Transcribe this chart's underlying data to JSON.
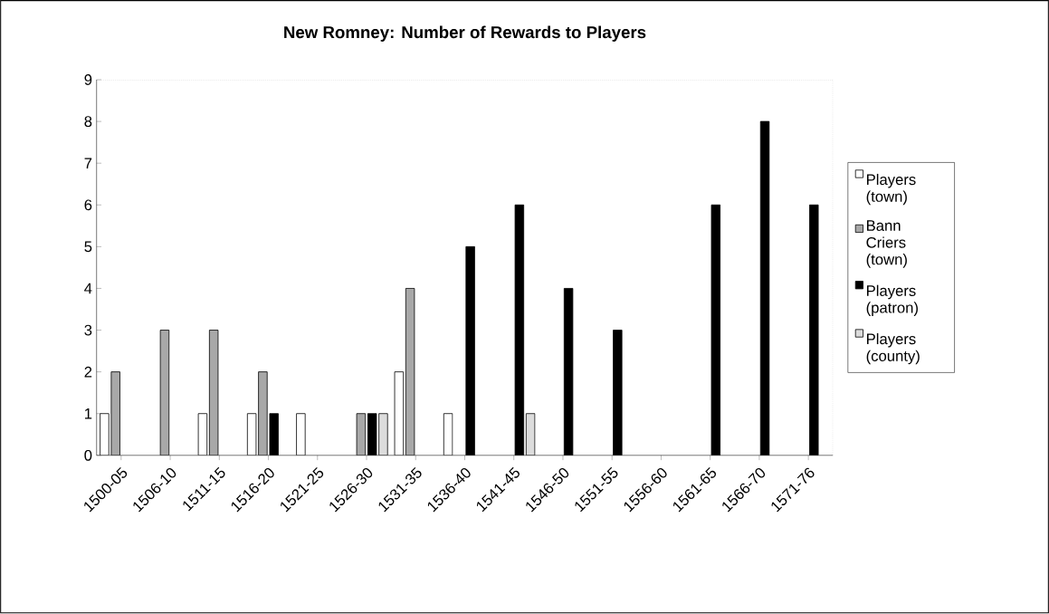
{
  "chart_data": {
    "type": "bar",
    "title": "New Romney: Number of Rewards to Players",
    "categories": [
      "1500-05",
      "1506-10",
      "1511-15",
      "1516-20",
      "1521-25",
      "1526-30",
      "1531-35",
      "1536-40",
      "1541-45",
      "1546-50",
      "1551-55",
      "1556-60",
      "1561-65",
      "1566-70",
      "1571-76"
    ],
    "series": [
      {
        "name": "Players (town)",
        "color": "#ffffff",
        "values": [
          1,
          null,
          1,
          1,
          1,
          null,
          2,
          1,
          null,
          null,
          null,
          null,
          null,
          null,
          null
        ]
      },
      {
        "name": "Bann Criers (town)",
        "color": "#a8a8a8",
        "values": [
          2,
          3,
          3,
          2,
          null,
          1,
          4,
          null,
          null,
          null,
          null,
          null,
          null,
          null,
          null
        ]
      },
      {
        "name": "Players (patron)",
        "color": "#000000",
        "values": [
          null,
          null,
          null,
          1,
          null,
          1,
          null,
          5,
          6,
          4,
          3,
          null,
          6,
          8,
          6
        ]
      },
      {
        "name": "Players (county)",
        "color": "#dcdcdc",
        "values": [
          null,
          null,
          null,
          null,
          null,
          1,
          null,
          null,
          1,
          null,
          null,
          null,
          null,
          null,
          null
        ]
      }
    ],
    "ylim": [
      0,
      9
    ],
    "yticks": [
      0,
      1,
      2,
      3,
      4,
      5,
      6,
      7,
      8,
      9
    ],
    "legend": "right",
    "grid": false
  }
}
